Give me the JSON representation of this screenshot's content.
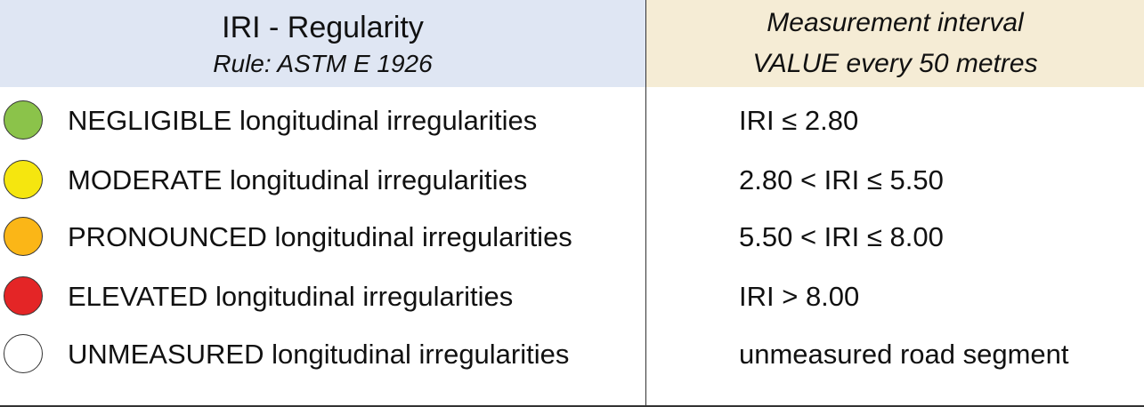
{
  "header": {
    "left": {
      "title": "IRI - Regularity",
      "subtitle": "Rule: ASTM E 1926"
    },
    "right": {
      "lines": [
        "Measurement interval",
        "VALUE every 50 metres"
      ]
    }
  },
  "rows": [
    {
      "label": "NEGLIGIBLE longitudinal irregularities",
      "condition": "IRI ≤ 2.80"
    },
    {
      "label": "MODERATE longitudinal irregularities",
      "condition": "2.80 < IRI ≤ 5.50"
    },
    {
      "label": "PRONOUNCED longitudinal irregularities",
      "condition": "5.50 < IRI ≤ 8.00"
    },
    {
      "label": "ELEVATED longitudinal irregularities",
      "condition": "IRI > 8.00"
    },
    {
      "label": "UNMEASURED longitudinal irregularities",
      "condition": "unmeasured road segment"
    }
  ]
}
